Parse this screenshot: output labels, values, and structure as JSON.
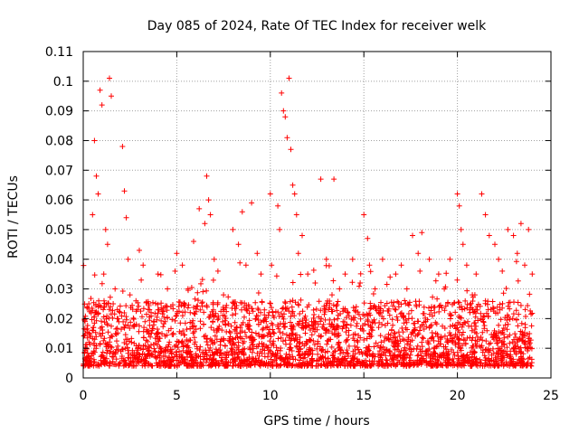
{
  "chart_data": {
    "type": "scatter",
    "title": "Day 085 of 2024, Rate Of TEC Index for receiver welk",
    "xlabel": "GPS time / hours",
    "ylabel": "ROTI / TECUs",
    "xlim": [
      0,
      25
    ],
    "ylim": [
      0,
      0.11
    ],
    "x_ticks": [
      "0",
      "5",
      "10",
      "15",
      "20",
      "25"
    ],
    "y_ticks": [
      "0",
      "0.01",
      "0.02",
      "0.03",
      "0.04",
      "0.05",
      "0.06",
      "0.07",
      "0.08",
      "0.09",
      "0.1",
      "0.11"
    ],
    "grid": true,
    "marker": "plus",
    "color": "#ff0000",
    "series": [
      {
        "x": [
          0.3,
          0.5,
          0.6,
          0.7,
          0.8,
          0.9,
          1.0,
          1.1,
          1.2,
          1.3,
          1.4,
          1.5,
          1.6,
          1.7,
          2.1,
          2.2,
          2.3,
          2.4,
          2.5,
          3.0,
          3.1,
          3.2,
          3.5,
          4.0,
          4.5,
          5.0,
          5.3,
          5.6,
          5.9,
          6.2,
          6.5,
          6.6,
          6.7,
          6.8,
          7.0,
          7.2,
          7.5,
          8.0,
          8.3,
          8.5,
          8.7,
          9.0,
          9.3,
          9.5,
          10.0,
          10.4,
          10.5,
          10.6,
          10.7,
          10.8,
          10.9,
          11.0,
          11.1,
          11.2,
          11.3,
          11.4,
          11.5,
          11.7,
          12.0,
          12.4,
          12.7,
          13.0,
          13.3,
          13.4,
          13.7,
          14.0,
          14.4,
          14.8,
          15.0,
          15.2,
          15.3,
          15.6,
          16.0,
          16.4,
          16.7,
          17.0,
          17.3,
          17.6,
          17.9,
          18.0,
          18.1,
          18.5,
          19.0,
          19.3,
          19.6,
          20.0,
          20.1,
          20.2,
          20.3,
          20.5,
          20.8,
          21.0,
          21.3,
          21.5,
          21.7,
          22.0,
          22.2,
          22.4,
          22.7,
          23.0,
          23.2,
          23.4,
          23.6,
          23.8,
          24.0
        ],
        "y": [
          0.025,
          0.055,
          0.08,
          0.068,
          0.062,
          0.097,
          0.092,
          0.035,
          0.05,
          0.045,
          0.101,
          0.095,
          0.025,
          0.03,
          0.078,
          0.063,
          0.054,
          0.04,
          0.028,
          0.043,
          0.033,
          0.038,
          0.025,
          0.035,
          0.03,
          0.042,
          0.038,
          0.03,
          0.046,
          0.057,
          0.052,
          0.068,
          0.06,
          0.055,
          0.04,
          0.036,
          0.028,
          0.05,
          0.045,
          0.056,
          0.038,
          0.059,
          0.042,
          0.035,
          0.062,
          0.058,
          0.05,
          0.096,
          0.09,
          0.088,
          0.081,
          0.101,
          0.077,
          0.065,
          0.062,
          0.055,
          0.042,
          0.048,
          0.035,
          0.032,
          0.067,
          0.04,
          0.028,
          0.067,
          0.03,
          0.035,
          0.04,
          0.032,
          0.055,
          0.047,
          0.038,
          0.03,
          0.04,
          0.034,
          0.035,
          0.038,
          0.03,
          0.048,
          0.042,
          0.036,
          0.049,
          0.04,
          0.035,
          0.03,
          0.04,
          0.062,
          0.058,
          0.05,
          0.045,
          0.038,
          0.028,
          0.035,
          0.062,
          0.055,
          0.048,
          0.045,
          0.04,
          0.036,
          0.05,
          0.048,
          0.042,
          0.052,
          0.038,
          0.05,
          0.035
        ]
      }
    ]
  }
}
